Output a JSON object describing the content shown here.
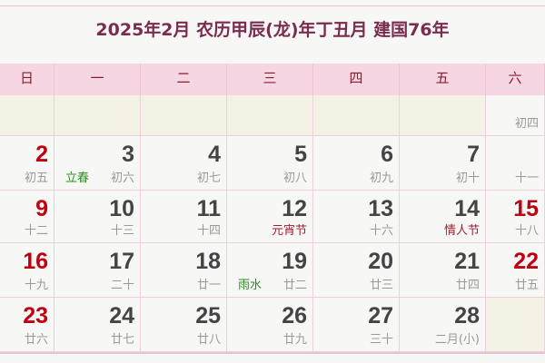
{
  "title": "2025年2月  农历甲辰(龙)年丁丑月  建国76年",
  "weekdays": [
    "日",
    "一",
    "二",
    "三",
    "四",
    "五",
    "六"
  ],
  "colors": {
    "title": "#7a2c50",
    "header_bg": "#f6d6e2",
    "weekend_date": "#c00010",
    "festival": "#a31c2c",
    "solar_term": "#2e8a1e",
    "blank_bg": "#f3f2e5"
  },
  "weeks": [
    [
      null,
      null,
      null,
      null,
      null,
      null,
      {
        "day": "",
        "lunar": "初四"
      }
    ],
    [
      {
        "day": "2",
        "lunar": "初五"
      },
      {
        "day": "3",
        "lunar": "初六",
        "term": "立春"
      },
      {
        "day": "4",
        "lunar": "初七"
      },
      {
        "day": "5",
        "lunar": "初八"
      },
      {
        "day": "6",
        "lunar": "初九"
      },
      {
        "day": "7",
        "lunar": "初十"
      },
      {
        "day": "",
        "lunar": "十一"
      }
    ],
    [
      {
        "day": "9",
        "lunar": "十二"
      },
      {
        "day": "10",
        "lunar": "十三"
      },
      {
        "day": "11",
        "lunar": "十四"
      },
      {
        "day": "12",
        "lunar": "元宵节",
        "festival": true
      },
      {
        "day": "13",
        "lunar": "十六"
      },
      {
        "day": "14",
        "lunar": "情人节",
        "festival": true
      },
      {
        "day": "15",
        "lunar": "十八"
      }
    ],
    [
      {
        "day": "16",
        "lunar": "十九"
      },
      {
        "day": "17",
        "lunar": "二十"
      },
      {
        "day": "18",
        "lunar": "廿一"
      },
      {
        "day": "19",
        "lunar": "廿二",
        "term": "雨水"
      },
      {
        "day": "20",
        "lunar": "廿三"
      },
      {
        "day": "21",
        "lunar": "廿四"
      },
      {
        "day": "22",
        "lunar": "廿五"
      }
    ],
    [
      {
        "day": "23",
        "lunar": "廿六"
      },
      {
        "day": "24",
        "lunar": "廿七"
      },
      {
        "day": "25",
        "lunar": "廿八"
      },
      {
        "day": "26",
        "lunar": "廿九"
      },
      {
        "day": "27",
        "lunar": "三十"
      },
      {
        "day": "28",
        "lunar": "二月(小)"
      },
      null
    ]
  ]
}
